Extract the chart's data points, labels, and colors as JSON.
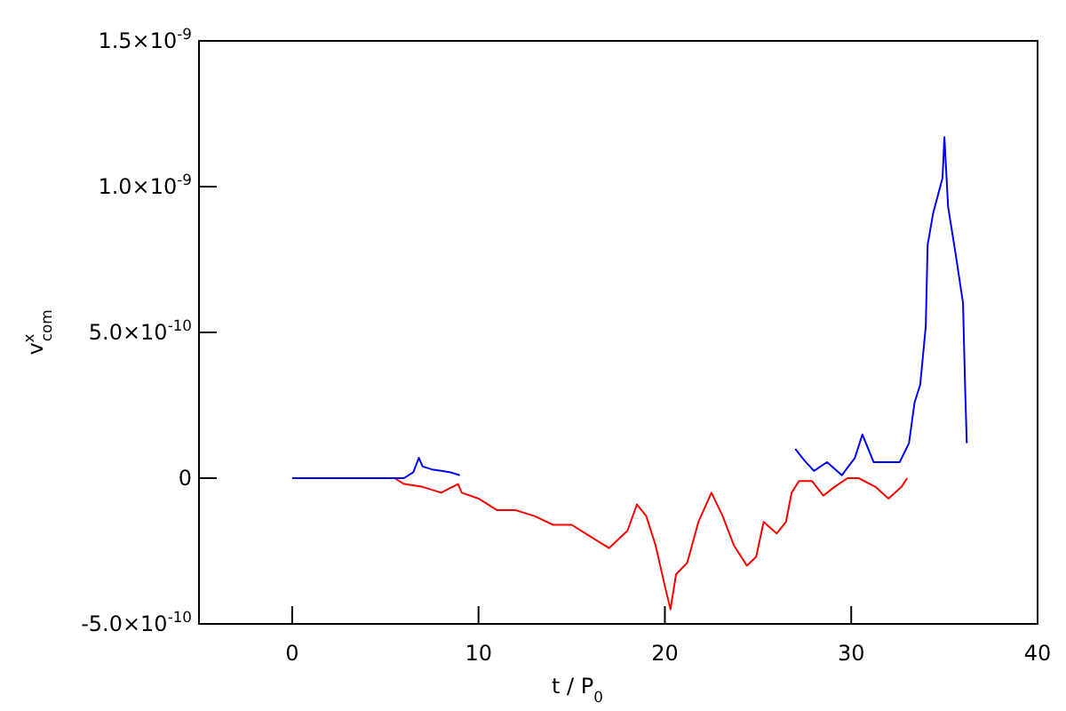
{
  "chart_data": {
    "type": "line",
    "xlabel": "t / P$_{0}$",
    "ylabel": "v$^{x}$$_{com}$",
    "xlim": [
      -5,
      40
    ],
    "xticks": [
      0,
      10,
      20,
      30,
      40
    ],
    "ylim": [
      -5e-10,
      1.5e-09
    ],
    "yticks": [
      {
        "value": -5e-10,
        "label": "-5.0×10$^{-10}$"
      },
      {
        "value": 0,
        "label": "0"
      },
      {
        "value": 5e-10,
        "label": "5.0×10$^{-10}$"
      },
      {
        "value": 1e-09,
        "label": "1.0×10$^{-9}$"
      },
      {
        "value": 1.5e-09,
        "label": "1.5×10$^{-9}$"
      }
    ],
    "grid": false,
    "marker": "none",
    "line_style": "solid",
    "series": [
      {
        "color": "#ff0000",
        "x": [
          5.5,
          6,
          7,
          8,
          8.9,
          9.1,
          10,
          11,
          12,
          13,
          14,
          15,
          16,
          17,
          18,
          18.5,
          19,
          19.5,
          20,
          20.3,
          20.6,
          21.2,
          21.8,
          22.5,
          23.1,
          23.7,
          24.4,
          24.9,
          25.3,
          26,
          26.5,
          26.8,
          27.2,
          27.9,
          28.5,
          29.1,
          29.8,
          30.4,
          31.3,
          32,
          32.7,
          33
        ],
        "values": [
          0,
          -2e-11,
          -3e-11,
          -5e-11,
          -2e-11,
          -5e-11,
          -7e-11,
          -1.1e-10,
          -1.1e-10,
          -1.3e-10,
          -1.6e-10,
          -1.6e-10,
          -2e-10,
          -2.4e-10,
          -1.8e-10,
          -9e-11,
          -1.3e-10,
          -2.3e-10,
          -3.7e-10,
          -4.5e-10,
          -3.3e-10,
          -2.9e-10,
          -1.5e-10,
          -5e-11,
          -1.3e-10,
          -2.3e-10,
          -3e-10,
          -2.7e-10,
          -1.5e-10,
          -1.9e-10,
          -1.5e-10,
          -5e-11,
          -1e-11,
          -1e-11,
          -6e-11,
          -3e-11,
          0,
          0,
          -3e-11,
          -7e-11,
          -3e-11,
          0
        ]
      },
      {
        "color": "#0000ff",
        "x": [
          0,
          2,
          4,
          5.5,
          6,
          6.5,
          6.8,
          7,
          7.5,
          8,
          8.5,
          9,
          18,
          27,
          27.5,
          28,
          28.7,
          29.5,
          30.2,
          30.6,
          31.2,
          32.6,
          33.1,
          33.4,
          33.7,
          34,
          34.1,
          34.4,
          34.9,
          35,
          35.2,
          35.6,
          36,
          36.1,
          36.2
        ],
        "values": [
          0,
          0,
          0,
          0,
          0,
          2e-11,
          7e-11,
          4e-11,
          3e-11,
          2.5e-11,
          2e-11,
          1e-11,
          null,
          1e-10,
          6e-11,
          2.5e-11,
          5.5e-11,
          1e-11,
          7e-11,
          1.5e-10,
          5.5e-11,
          5.5e-11,
          1.2e-10,
          2.6e-10,
          3.2e-10,
          5.2e-10,
          8e-10,
          9.1e-10,
          1.03e-09,
          1.17e-09,
          9.3e-10,
          7.7e-10,
          6e-10,
          3.4e-10,
          1.2e-10
        ]
      }
    ]
  }
}
